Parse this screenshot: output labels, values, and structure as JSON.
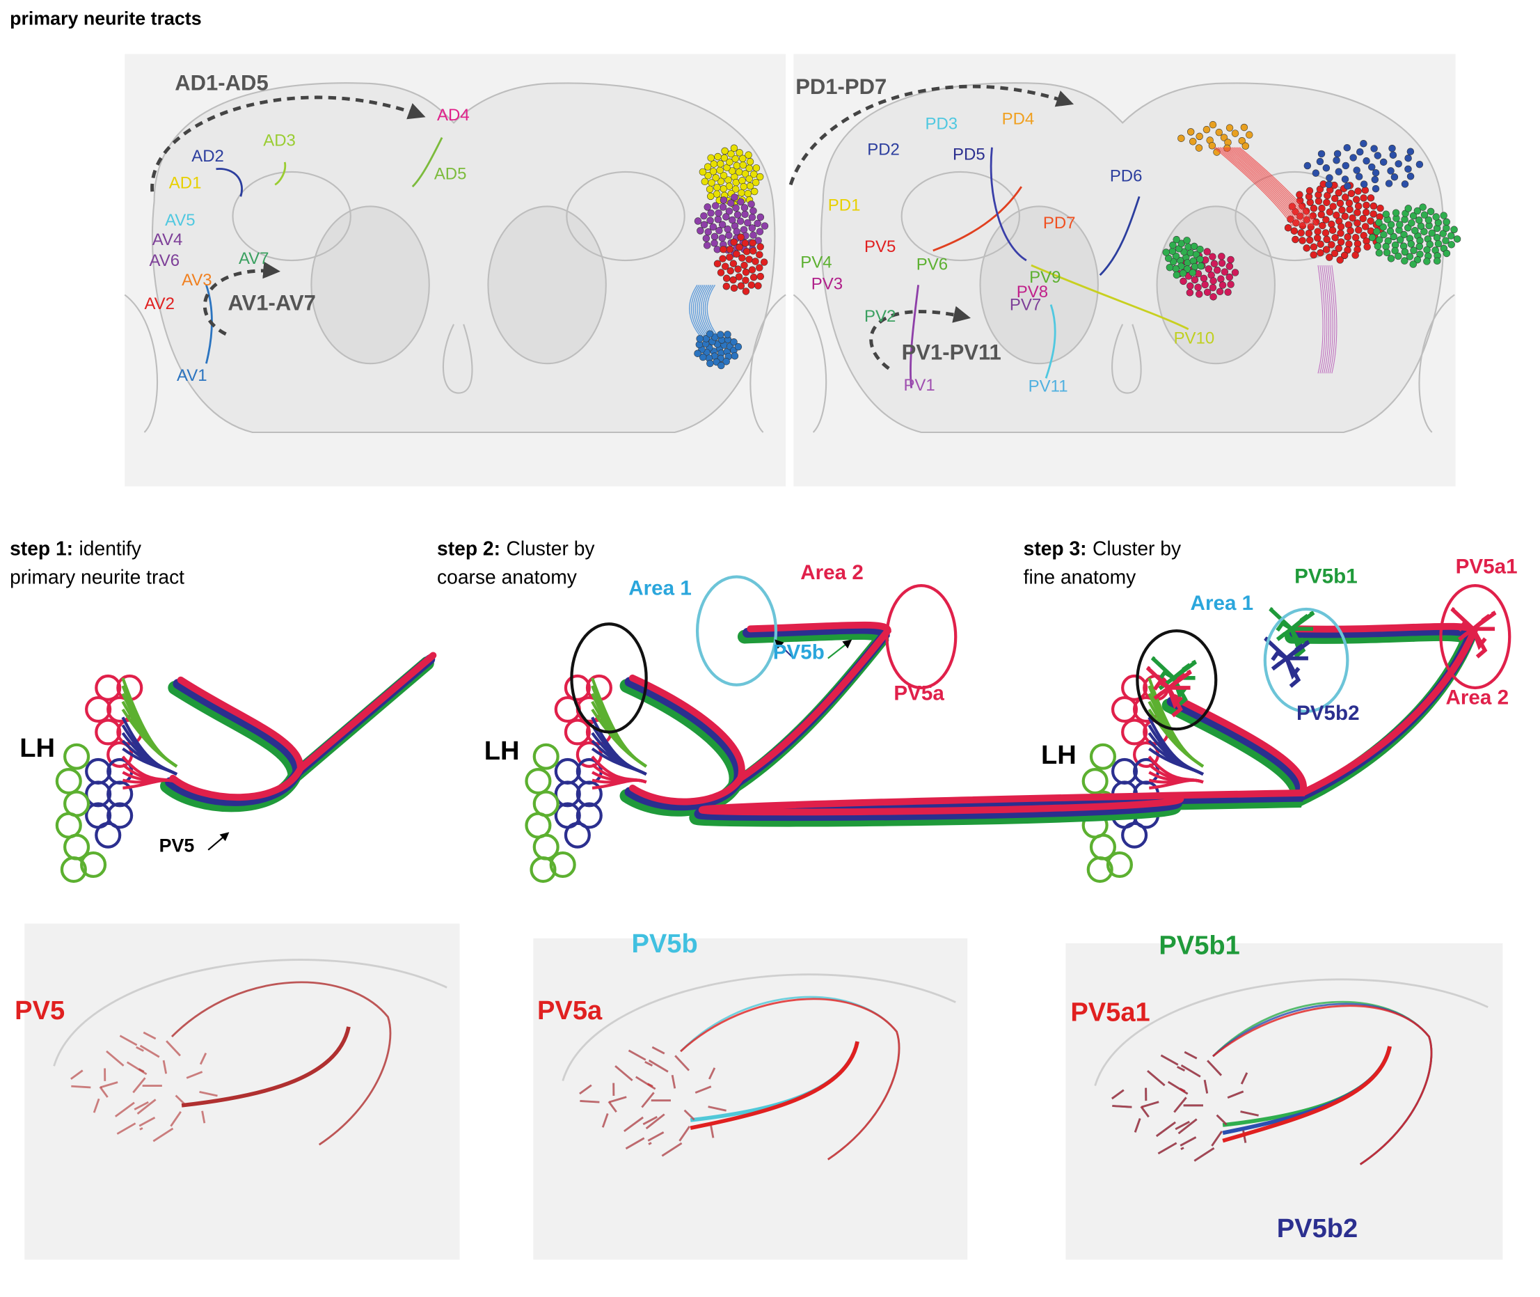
{
  "title": "primary neurite tracts",
  "overview": {
    "left": {
      "groups": [
        "AD1-AD5",
        "AV1-AV7"
      ],
      "tracts": [
        "AD4",
        "AD3",
        "AD2",
        "AD1",
        "AD5",
        "AV5",
        "AV4",
        "AV6",
        "AV7",
        "AV3",
        "AV2",
        "AV1"
      ]
    },
    "right": {
      "groups": [
        "PD1-PD7",
        "PV1-PV11"
      ],
      "tracts": [
        "PD3",
        "PD4",
        "PD2",
        "PD5",
        "PD6",
        "PD1",
        "PD7",
        "PV5",
        "PV6",
        "PV4",
        "PV3",
        "PV9",
        "PV8",
        "PV7",
        "PV2",
        "PV10",
        "PV11",
        "PV1"
      ]
    }
  },
  "steps": [
    {
      "step": "step 1:",
      "lines": [
        "identify",
        "primary neurite tract"
      ]
    },
    {
      "step": "step 2:",
      "lines": [
        "Cluster by",
        "coarse anatomy"
      ]
    },
    {
      "step": "step 3:",
      "lines": [
        "Cluster by",
        "fine anatomy"
      ]
    }
  ],
  "schematics": [
    {
      "labels": [
        "LH",
        "PV5"
      ]
    },
    {
      "labels": [
        "LH",
        "Area 1",
        "Area 2",
        "PV5b",
        "PV5a"
      ]
    },
    {
      "labels": [
        "LH",
        "Area 1",
        "PV5b1",
        "PV5a1",
        "PV5b2",
        "Area 2"
      ]
    }
  ],
  "renderings": [
    {
      "labels": [
        "PV5"
      ]
    },
    {
      "labels": [
        "PV5b",
        "PV5a"
      ]
    },
    {
      "labels": [
        "PV5b1",
        "PV5a1",
        "PV5b2"
      ]
    }
  ]
}
